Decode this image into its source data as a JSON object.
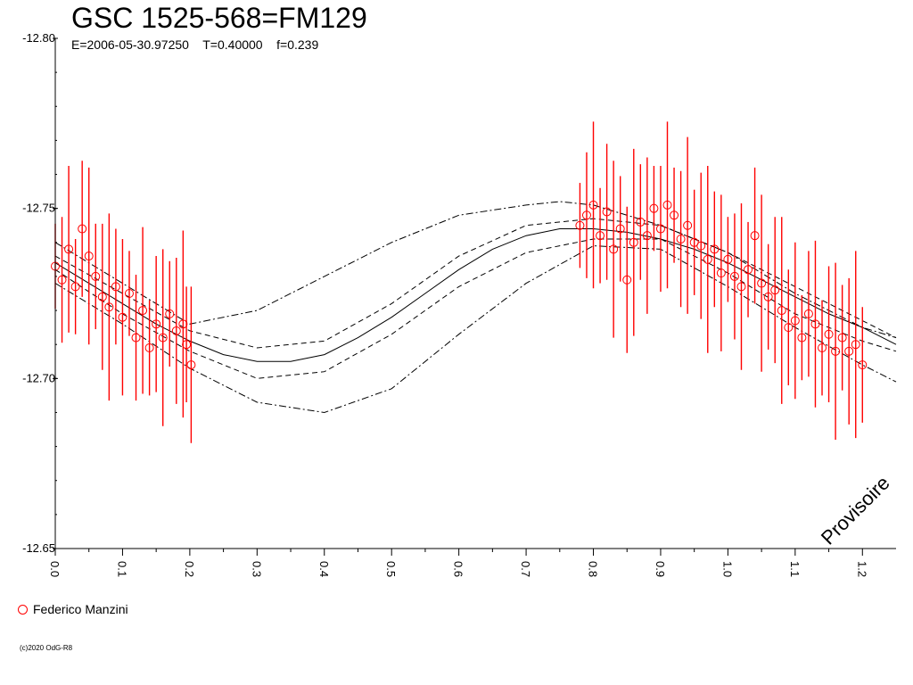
{
  "header": {
    "title": "GSC 1525-568=FM129",
    "subtitle": "E=2006-05-30.97250    T=0.40000    f=0.239"
  },
  "legend": {
    "label": "Federico Manzini",
    "color": "#ff0000"
  },
  "watermark": "Provisoire",
  "copyright": "(c)2020 OdG-R8",
  "chart_data": {
    "type": "scatter",
    "title": "GSC 1525-568=FM129",
    "xlim": [
      0.0,
      1.25
    ],
    "ylim": [
      -12.8,
      -12.65
    ],
    "y_ticks": [
      -12.8,
      -12.75,
      -12.7,
      -12.65
    ],
    "y_tick_labels": [
      "-12.80",
      "-12.75",
      "-12.70",
      "-12.65"
    ],
    "x_ticks": [
      0.0,
      0.1,
      0.2,
      0.3,
      0.4,
      0.5,
      0.6,
      0.7,
      0.8,
      0.9,
      1.0,
      1.1,
      1.2
    ],
    "x_tick_labels": [
      "0.0",
      "0.1",
      "0.2",
      "0.3",
      "0.4",
      "0.5",
      "0.6",
      "0.7",
      "0.8",
      "0.9",
      "1.0",
      "1.1",
      "1.2"
    ],
    "grid": false,
    "legend_position": "bottom-left",
    "series": [
      {
        "name": "Federico Manzini",
        "style": "circles with error bars",
        "color": "#ff0000",
        "error_bar": 0.02,
        "points": [
          [
            0.0,
            -12.733
          ],
          [
            0.01,
            -12.729
          ],
          [
            0.02,
            -12.738
          ],
          [
            0.03,
            -12.727
          ],
          [
            0.04,
            -12.744
          ],
          [
            0.05,
            -12.736
          ],
          [
            0.06,
            -12.73
          ],
          [
            0.07,
            -12.724
          ],
          [
            0.08,
            -12.721
          ],
          [
            0.09,
            -12.727
          ],
          [
            0.1,
            -12.718
          ],
          [
            0.11,
            -12.725
          ],
          [
            0.12,
            -12.712
          ],
          [
            0.13,
            -12.72
          ],
          [
            0.14,
            -12.709
          ],
          [
            0.15,
            -12.716
          ],
          [
            0.16,
            -12.712
          ],
          [
            0.17,
            -12.719
          ],
          [
            0.18,
            -12.714
          ],
          [
            0.19,
            -12.716
          ],
          [
            0.195,
            -12.71
          ],
          [
            0.202,
            -12.704
          ],
          [
            0.78,
            -12.745
          ],
          [
            0.79,
            -12.748
          ],
          [
            0.8,
            -12.751
          ],
          [
            0.81,
            -12.742
          ],
          [
            0.82,
            -12.749
          ],
          [
            0.83,
            -12.738
          ],
          [
            0.84,
            -12.744
          ],
          [
            0.85,
            -12.729
          ],
          [
            0.86,
            -12.74
          ],
          [
            0.87,
            -12.746
          ],
          [
            0.88,
            -12.742
          ],
          [
            0.89,
            -12.75
          ],
          [
            0.9,
            -12.744
          ],
          [
            0.91,
            -12.751
          ],
          [
            0.92,
            -12.748
          ],
          [
            0.93,
            -12.741
          ],
          [
            0.94,
            -12.745
          ],
          [
            0.95,
            -12.74
          ],
          [
            0.96,
            -12.739
          ],
          [
            0.97,
            -12.735
          ],
          [
            0.98,
            -12.738
          ],
          [
            0.99,
            -12.731
          ],
          [
            1.0,
            -12.735
          ],
          [
            1.01,
            -12.73
          ],
          [
            1.02,
            -12.727
          ],
          [
            1.03,
            -12.732
          ],
          [
            1.04,
            -12.742
          ],
          [
            1.05,
            -12.728
          ],
          [
            1.06,
            -12.724
          ],
          [
            1.07,
            -12.726
          ],
          [
            1.08,
            -12.72
          ],
          [
            1.09,
            -12.715
          ],
          [
            1.1,
            -12.717
          ],
          [
            1.11,
            -12.712
          ],
          [
            1.12,
            -12.719
          ],
          [
            1.13,
            -12.716
          ],
          [
            1.14,
            -12.709
          ],
          [
            1.15,
            -12.713
          ],
          [
            1.16,
            -12.708
          ],
          [
            1.17,
            -12.712
          ],
          [
            1.18,
            -12.708
          ],
          [
            1.19,
            -12.71
          ],
          [
            1.2,
            -12.704
          ]
        ]
      },
      {
        "type": "line",
        "style": "solid",
        "fit": true,
        "x": [
          0.0,
          0.05,
          0.1,
          0.15,
          0.2,
          0.25,
          0.3,
          0.35,
          0.4,
          0.45,
          0.5,
          0.55,
          0.6,
          0.65,
          0.7,
          0.75,
          0.8,
          0.85,
          0.9,
          0.95,
          1.0,
          1.05,
          1.1,
          1.15,
          1.2,
          1.25
        ],
        "y": [
          -12.734,
          -12.728,
          -12.722,
          -12.716,
          -12.711,
          -12.707,
          -12.705,
          -12.705,
          -12.707,
          -12.712,
          -12.718,
          -12.725,
          -12.732,
          -12.738,
          -12.742,
          -12.744,
          -12.744,
          -12.743,
          -12.741,
          -12.738,
          -12.734,
          -12.729,
          -12.724,
          -12.719,
          -12.715,
          -12.71
        ]
      },
      {
        "type": "line",
        "style": "dashed",
        "x": [
          0.0,
          0.1,
          0.2,
          0.3,
          0.4,
          0.5,
          0.6,
          0.7,
          0.8,
          0.9,
          1.0,
          1.1,
          1.2,
          1.25
        ],
        "y": [
          -12.736,
          -12.725,
          -12.714,
          -12.709,
          -12.711,
          -12.722,
          -12.736,
          -12.745,
          -12.747,
          -12.745,
          -12.737,
          -12.727,
          -12.717,
          -12.712
        ]
      },
      {
        "type": "line",
        "style": "dashed",
        "x": [
          0.0,
          0.1,
          0.2,
          0.3,
          0.4,
          0.5,
          0.6,
          0.7,
          0.8,
          0.9,
          1.0,
          1.1,
          1.2,
          1.25
        ],
        "y": [
          -12.732,
          -12.719,
          -12.708,
          -12.7,
          -12.702,
          -12.713,
          -12.727,
          -12.737,
          -12.741,
          -12.741,
          -12.731,
          -12.719,
          -12.711,
          -12.708
        ]
      },
      {
        "type": "line",
        "style": "dash-dot",
        "x": [
          0.0,
          0.1,
          0.2,
          0.3,
          0.4,
          0.5,
          0.6,
          0.7,
          0.75,
          0.8,
          0.9,
          1.0,
          1.1,
          1.2,
          1.25
        ],
        "y": [
          -12.74,
          -12.728,
          -12.716,
          -12.72,
          -12.73,
          -12.74,
          -12.748,
          -12.751,
          -12.752,
          -12.751,
          -12.745,
          -12.737,
          -12.725,
          -12.715,
          -12.712
        ]
      },
      {
        "type": "line",
        "style": "dash-dot",
        "x": [
          0.0,
          0.1,
          0.2,
          0.3,
          0.4,
          0.5,
          0.6,
          0.7,
          0.8,
          0.9,
          1.0,
          1.1,
          1.2,
          1.25
        ],
        "y": [
          -12.728,
          -12.716,
          -12.703,
          -12.693,
          -12.69,
          -12.697,
          -12.713,
          -12.728,
          -12.739,
          -12.738,
          -12.727,
          -12.715,
          -12.704,
          -12.699
        ]
      }
    ]
  }
}
